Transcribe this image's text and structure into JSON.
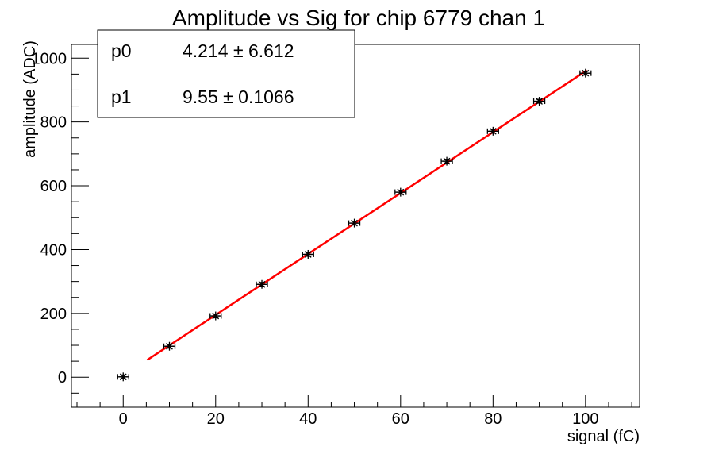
{
  "chart_data": {
    "type": "scatter",
    "title": "Amplitude vs Sig for chip 6779 chan 1",
    "xlabel": "signal (fC)",
    "ylabel": "amplitude (ADC)",
    "xlim": [
      -11.2,
      111.7
    ],
    "ylim": [
      -94,
      1043
    ],
    "x_ticks": [
      0,
      20,
      40,
      60,
      80,
      100
    ],
    "x_minor_step": 5,
    "y_ticks": [
      0,
      200,
      400,
      600,
      800,
      1000
    ],
    "y_minor_step": 50,
    "grid": false,
    "legend_position": "none",
    "series": [
      {
        "name": "amplitude-vs-signal-data",
        "marker": "star",
        "color": "#000000",
        "x": [
          0,
          10,
          20,
          30,
          40,
          50,
          60,
          70,
          80,
          90,
          100
        ],
        "y": [
          1,
          97,
          192,
          291,
          385,
          483,
          580,
          677,
          771,
          865,
          953
        ],
        "x_err": 1.2,
        "y_err": 6
      }
    ],
    "fit": {
      "type": "pol1",
      "p0": 4.214,
      "p0_err": 6.612,
      "p1": 9.55,
      "p1_err": 0.1066,
      "range": [
        5.2,
        100.3
      ],
      "color": "#ff0000"
    }
  },
  "stats_box": {
    "rows": [
      {
        "label": "p0",
        "value": "4.214 ± 6.612"
      },
      {
        "label": "p1",
        "value": "9.55 ± 0.1066"
      }
    ]
  }
}
